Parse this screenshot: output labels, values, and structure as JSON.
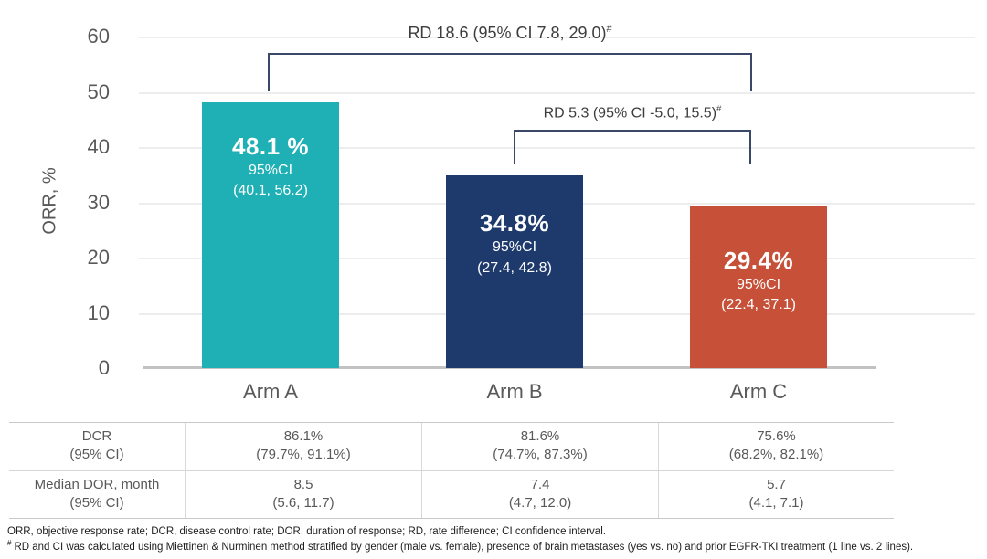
{
  "chart_data": {
    "type": "bar",
    "title": "",
    "ylabel": "ORR, %",
    "xlabel": "",
    "ylim": [
      0,
      60
    ],
    "yticks": [
      "60",
      "50",
      "40",
      "30",
      "20",
      "10",
      "0"
    ],
    "grid": "horizontal gridlines every 10, light gray",
    "legend": "none",
    "categories": [
      "Arm A",
      "Arm B",
      "Arm C"
    ],
    "series": [
      {
        "name": "ORR %",
        "values": [
          48.1,
          34.8,
          29.4
        ]
      }
    ],
    "bar_colors": [
      "#1fb0b5",
      "#1e3a6d",
      "#c65138"
    ],
    "bar_labels": [
      {
        "value": "48.1 %",
        "ci_heading": "95%CI",
        "ci_range": "(40.1, 56.2)"
      },
      {
        "value": "34.8%",
        "ci_heading": "95%CI",
        "ci_range": "(27.4, 42.8)"
      },
      {
        "value": "29.4%",
        "ci_heading": "95%CI",
        "ci_range": "(22.4, 37.1)"
      }
    ],
    "annotations": [
      {
        "text": "RD 18.6 (95% CI 7.8, 29.0)",
        "sup": "#",
        "compares": "Arm A vs Arm C"
      },
      {
        "text": "RD 5.3 (95% CI -5.0, 15.5)",
        "sup": "#",
        "compares": "Arm B vs Arm C"
      }
    ]
  },
  "table": {
    "rows": [
      {
        "label_line1": "DCR",
        "label_line2": "(95% CI)",
        "cells": [
          {
            "value": "86.1%",
            "ci": "(79.7%, 91.1%)"
          },
          {
            "value": "81.6%",
            "ci": "(74.7%, 87.3%)"
          },
          {
            "value": "75.6%",
            "ci": "(68.2%, 82.1%)"
          }
        ]
      },
      {
        "label_line1": "Median DOR, month",
        "label_line2": "(95% CI)",
        "cells": [
          {
            "value": "8.5",
            "ci": "(5.6, 11.7)"
          },
          {
            "value": "7.4",
            "ci": "(4.7, 12.0)"
          },
          {
            "value": "5.7",
            "ci": "(4.1, 7.1)"
          }
        ]
      }
    ]
  },
  "footnotes": {
    "line1": "ORR, objective response rate; DCR, disease control rate; DOR, duration of response; RD, rate difference; CI confidence interval.",
    "line2_sup": "#",
    "line2_text": "RD and CI was calculated using Miettinen & Nurminen method stratified by gender (male vs. female), presence of brain metastases (yes vs. no) and prior EGFR-TKI treatment (1 line vs. 2 lines)."
  }
}
